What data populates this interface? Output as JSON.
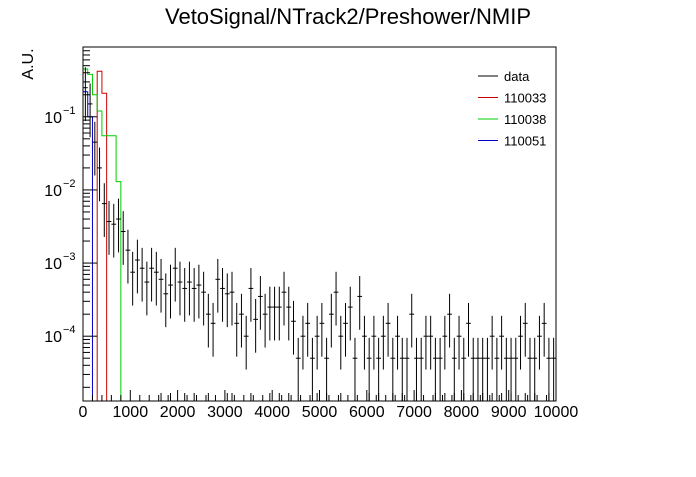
{
  "chart_data": {
    "type": "histogram",
    "title": "VetoSignal/NTrack2/Preshower/NMIP",
    "xlabel": "",
    "ylabel": "A.U.",
    "xlim": [
      0,
      10000
    ],
    "ylim": [
      1.3e-05,
      0.9
    ],
    "yscale": "log",
    "grid": false,
    "legend_position": "top-right",
    "x_ticks": [
      {
        "value": 0,
        "label": "0"
      },
      {
        "value": 1000,
        "label": "1000"
      },
      {
        "value": 2000,
        "label": "2000"
      },
      {
        "value": 3000,
        "label": "3000"
      },
      {
        "value": 4000,
        "label": "4000"
      },
      {
        "value": 5000,
        "label": "5000"
      },
      {
        "value": 6000,
        "label": "6000"
      },
      {
        "value": 7000,
        "label": "7000"
      },
      {
        "value": 8000,
        "label": "8000"
      },
      {
        "value": 9000,
        "label": "9000"
      },
      {
        "value": 10000,
        "label": "10000"
      }
    ],
    "y_ticks": [
      {
        "value": 0.1,
        "base": "10",
        "exp": "−1"
      },
      {
        "value": 0.01,
        "base": "10",
        "exp": "−2"
      },
      {
        "value": 0.001,
        "base": "10",
        "exp": "−3"
      },
      {
        "value": 0.0001,
        "base": "10",
        "exp": "−4"
      }
    ],
    "bin_width": 100,
    "series": [
      {
        "name": "data",
        "color": "#000000",
        "style": "points",
        "points": [
          [
            50,
            0.25
          ],
          [
            150,
            0.15
          ],
          [
            250,
            0.045
          ],
          [
            350,
            0.02
          ],
          [
            450,
            0.0065
          ],
          [
            550,
            0.0037
          ],
          [
            650,
            0.0034
          ],
          [
            750,
            0.004
          ],
          [
            850,
            0.0027
          ],
          [
            950,
            0.0015
          ],
          [
            1050,
            0.00075
          ],
          [
            1150,
            0.0011
          ],
          [
            1250,
            0.00085
          ],
          [
            1350,
            0.00055
          ],
          [
            1450,
            0.00085
          ],
          [
            1550,
            0.00075
          ],
          [
            1650,
            0.0006
          ],
          [
            1750,
            0.00038
          ],
          [
            1850,
            0.0005
          ],
          [
            1950,
            0.00085
          ],
          [
            2050,
            0.00055
          ],
          [
            2150,
            0.00045
          ],
          [
            2250,
            0.00055
          ],
          [
            2350,
            0.00045
          ],
          [
            2450,
            0.0005
          ],
          [
            2550,
            0.0004
          ],
          [
            2650,
            0.0002
          ],
          [
            2750,
            0.00015
          ],
          [
            2850,
            0.0006
          ],
          [
            2950,
            0.00045
          ],
          [
            3050,
            0.00038
          ],
          [
            3150,
            0.0004
          ],
          [
            3250,
            0.00015
          ],
          [
            3350,
            0.0002
          ],
          [
            3450,
            0.0001
          ],
          [
            3550,
            0.00045
          ],
          [
            3650,
            0.00017
          ],
          [
            3750,
            0.00035
          ],
          [
            3850,
            0.0002
          ],
          [
            3950,
            0.00025
          ],
          [
            4050,
            0.00025
          ],
          [
            4150,
            0.00025
          ],
          [
            4250,
            0.0004
          ],
          [
            4350,
            0.00025
          ],
          [
            4450,
            0.00016
          ],
          [
            4550,
            5e-05
          ],
          [
            4650,
            0.0001
          ],
          [
            4750,
            0.00015
          ],
          [
            4850,
            5e-05
          ],
          [
            4950,
            0.0001
          ],
          [
            5050,
            0.00015
          ],
          [
            5150,
            5e-05
          ],
          [
            5250,
            0.0002
          ],
          [
            5350,
            0.0004
          ],
          [
            5450,
            0.0001
          ],
          [
            5550,
            0.00015
          ],
          [
            5650,
            0.00025
          ],
          [
            5750,
            5e-05
          ],
          [
            5850,
            0.00035
          ],
          [
            5950,
            0.0001
          ],
          [
            6050,
            5e-05
          ],
          [
            6150,
            0.0001
          ],
          [
            6250,
            5e-05
          ],
          [
            6350,
            0.0001
          ],
          [
            6450,
            0.00015
          ],
          [
            6550,
            5e-05
          ],
          [
            6650,
            0.0001
          ],
          [
            6750,
            5e-05
          ],
          [
            6850,
            5e-05
          ],
          [
            6950,
            0.0002
          ],
          [
            7050,
            5e-05
          ],
          [
            7150,
            5e-05
          ],
          [
            7250,
            0.0001
          ],
          [
            7350,
            0.0001
          ],
          [
            7450,
            5e-05
          ],
          [
            7550,
            5e-05
          ],
          [
            7650,
            0.0001
          ],
          [
            7750,
            0.0002
          ],
          [
            7850,
            5e-05
          ],
          [
            7950,
            0.0001
          ],
          [
            8050,
            5e-05
          ],
          [
            8150,
            0.00015
          ],
          [
            8250,
            5e-05
          ],
          [
            8350,
            5e-05
          ],
          [
            8450,
            5e-05
          ],
          [
            8550,
            5e-05
          ],
          [
            8650,
            0.0001
          ],
          [
            8750,
            5e-05
          ],
          [
            8850,
            0.0001
          ],
          [
            8950,
            5e-05
          ],
          [
            9050,
            5e-05
          ],
          [
            9150,
            5e-05
          ],
          [
            9250,
            0.0001
          ],
          [
            9350,
            0.00015
          ],
          [
            9450,
            5e-05
          ],
          [
            9550,
            5e-05
          ],
          [
            9650,
            0.0001
          ],
          [
            9750,
            0.00015
          ],
          [
            9850,
            5e-05
          ],
          [
            9950,
            5e-05
          ]
        ],
        "zero_bins": [
          1650,
          1850,
          2150,
          2350,
          2650,
          3050,
          3150,
          3550,
          3950,
          4150,
          4350,
          4950,
          5150,
          5450,
          5750,
          6050,
          6250,
          6550,
          6750,
          7050,
          7450,
          7650,
          7850,
          8050,
          8250,
          8450,
          8650,
          8850,
          9050,
          9350,
          9550,
          9850
        ]
      },
      {
        "name": "110033",
        "color": "#cc0000",
        "style": "step",
        "edges": [
          0,
          100,
          200,
          300,
          400,
          500,
          600
        ],
        "values": [
          0.0,
          0.0,
          0.0,
          0.42,
          0.21,
          0.0
        ]
      },
      {
        "name": "110038",
        "color": "#00cc00",
        "style": "step",
        "edges": [
          0,
          100,
          200,
          300,
          400,
          500,
          600,
          700,
          800,
          900
        ],
        "values": [
          0.45,
          0.38,
          0.2,
          0.12,
          0.055,
          0.055,
          0.055,
          0.013,
          0.0
        ]
      },
      {
        "name": "110051",
        "color": "#0000cc",
        "style": "step",
        "edges": [
          0,
          100,
          200,
          300
        ],
        "values": [
          0.22,
          0.1,
          0.0
        ]
      }
    ]
  }
}
